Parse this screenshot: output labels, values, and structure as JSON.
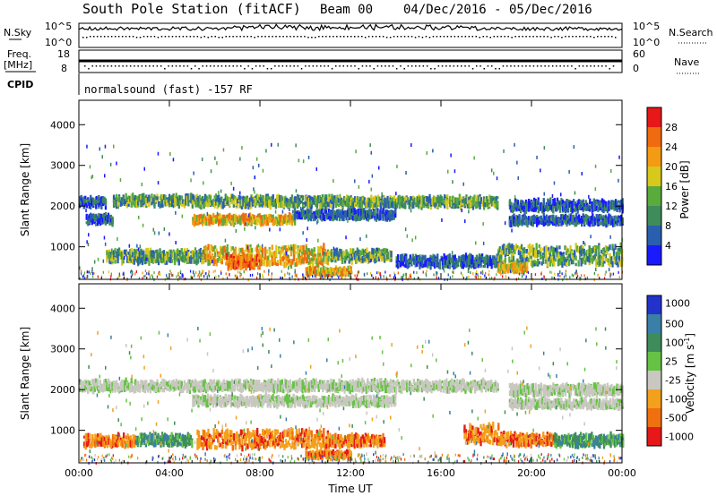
{
  "header": {
    "station": "South Pole Station (fitACF)",
    "beam": "Beam 00",
    "date_range": "04/Dec/2016 - 05/Dec/2016"
  },
  "summary_panels": {
    "nsky_label": "N.Sky",
    "nsearch_label": "N.Search",
    "freq_label": "Freq.",
    "freq_unit": "[MHz]",
    "nave_label": "Nave",
    "cpid_label": "CPID",
    "left_ticks_top": "10^5",
    "left_ticks_bottom": "10^0",
    "right_ticks_top": "10^5",
    "right_ticks_bottom": "10^0",
    "freq_ticks": [
      "18",
      "8"
    ],
    "nave_ticks": [
      "60",
      "0"
    ],
    "cpid_text": "normalsound (fast) -157 RF"
  },
  "chart_data": [
    {
      "type": "heatmap",
      "name": "power",
      "ylabel": "Slant Range [km]",
      "ylim": [
        200,
        4600
      ],
      "yticks": [
        "1000",
        "2000",
        "3000",
        "4000"
      ],
      "xlim": [
        0,
        24
      ],
      "xticks": [
        "00:00",
        "04:00",
        "08:00",
        "12:00",
        "16:00",
        "20:00",
        "00:00"
      ],
      "colorbar": {
        "label": "Power [dB]",
        "ticks": [
          "4",
          "8",
          "12",
          "16",
          "20",
          "24",
          "28"
        ],
        "colors": [
          "#1a1aff",
          "#2a5fb0",
          "#3e8c5a",
          "#5aab3c",
          "#d8c81c",
          "#f39b12",
          "#f06a10",
          "#e61818"
        ]
      },
      "bands": [
        {
          "t0": 0.0,
          "t1": 1.2,
          "r0": 1980,
          "r1": 2200,
          "level": "weak"
        },
        {
          "t0": 0.3,
          "t1": 1.5,
          "r0": 1580,
          "r1": 1760,
          "level": "weak"
        },
        {
          "t0": 1.5,
          "t1": 5.0,
          "r0": 2020,
          "r1": 2240,
          "level": "mid"
        },
        {
          "t0": 5.0,
          "t1": 10.0,
          "r0": 2000,
          "r1": 2220,
          "level": "mid"
        },
        {
          "t0": 10.0,
          "t1": 18.5,
          "r0": 1990,
          "r1": 2210,
          "level": "mid"
        },
        {
          "t0": 5.0,
          "t1": 9.5,
          "r0": 1580,
          "r1": 1760,
          "level": "strong"
        },
        {
          "t0": 9.5,
          "t1": 14.0,
          "r0": 1700,
          "r1": 1880,
          "level": "weak"
        },
        {
          "t0": 1.2,
          "t1": 5.5,
          "r0": 620,
          "r1": 900,
          "level": "mid"
        },
        {
          "t0": 5.5,
          "t1": 11.0,
          "r0": 560,
          "r1": 1000,
          "level": "strong"
        },
        {
          "t0": 6.5,
          "t1": 8.0,
          "r0": 480,
          "r1": 760,
          "level": "peak"
        },
        {
          "t0": 11.0,
          "t1": 13.8,
          "r0": 640,
          "r1": 920,
          "level": "mid"
        },
        {
          "t0": 14.0,
          "t1": 18.5,
          "r0": 520,
          "r1": 760,
          "level": "weak"
        },
        {
          "t0": 19.0,
          "t1": 24.0,
          "r0": 1900,
          "r1": 2120,
          "level": "weak"
        },
        {
          "t0": 19.0,
          "t1": 24.0,
          "r0": 1560,
          "r1": 1740,
          "level": "weak"
        },
        {
          "t0": 18.5,
          "t1": 24.0,
          "r0": 560,
          "r1": 1020,
          "level": "mid"
        },
        {
          "t0": 18.5,
          "t1": 19.8,
          "r0": 400,
          "r1": 560,
          "level": "strong"
        },
        {
          "t0": 10.0,
          "t1": 12.0,
          "r0": 330,
          "r1": 460,
          "level": "strong"
        }
      ]
    },
    {
      "type": "heatmap",
      "name": "velocity",
      "ylabel": "Slant Range [km]",
      "ylim": [
        200,
        4600
      ],
      "yticks": [
        "1000",
        "2000",
        "3000",
        "4000"
      ],
      "xlim": [
        0,
        24
      ],
      "xticks": [
        "00:00",
        "04:00",
        "08:00",
        "12:00",
        "16:00",
        "20:00",
        "00:00"
      ],
      "xlabel": "Time UT",
      "colorbar": {
        "label": "Velocity [m s",
        "label_sup": "-1",
        "label_end": "]",
        "ticks": [
          "1000",
          "500",
          "100",
          "25",
          "-25",
          "-100",
          "-500",
          "-1000"
        ],
        "colors": [
          "#2233cc",
          "#3a7fa8",
          "#3e8c5a",
          "#66c244",
          "#c8c8c0",
          "#f3a01c",
          "#f07010",
          "#e61818"
        ]
      },
      "bands": [
        {
          "t0": 0.0,
          "t1": 18.5,
          "r0": 1980,
          "r1": 2200,
          "level": "grey"
        },
        {
          "t0": 5.0,
          "t1": 14.0,
          "r0": 1620,
          "r1": 1820,
          "level": "grey"
        },
        {
          "t0": 19.0,
          "t1": 24.0,
          "r0": 1880,
          "r1": 2100,
          "level": "grey"
        },
        {
          "t0": 19.0,
          "t1": 24.0,
          "r0": 1560,
          "r1": 1740,
          "level": "grey"
        },
        {
          "t0": 0.2,
          "t1": 2.5,
          "r0": 620,
          "r1": 860,
          "level": "orange"
        },
        {
          "t0": 5.2,
          "t1": 11.0,
          "r0": 560,
          "r1": 1000,
          "level": "orange"
        },
        {
          "t0": 11.0,
          "t1": 13.5,
          "r0": 620,
          "r1": 860,
          "level": "orange"
        },
        {
          "t0": 17.0,
          "t1": 18.5,
          "r0": 700,
          "r1": 1120,
          "level": "orange"
        },
        {
          "t0": 18.5,
          "t1": 21.0,
          "r0": 640,
          "r1": 900,
          "level": "orange"
        },
        {
          "t0": 21.0,
          "t1": 24.0,
          "r0": 620,
          "r1": 880,
          "level": "green"
        },
        {
          "t0": 2.5,
          "t1": 5.0,
          "r0": 640,
          "r1": 880,
          "level": "green"
        },
        {
          "t0": 10.0,
          "t1": 12.0,
          "r0": 330,
          "r1": 460,
          "level": "orange"
        }
      ]
    }
  ]
}
